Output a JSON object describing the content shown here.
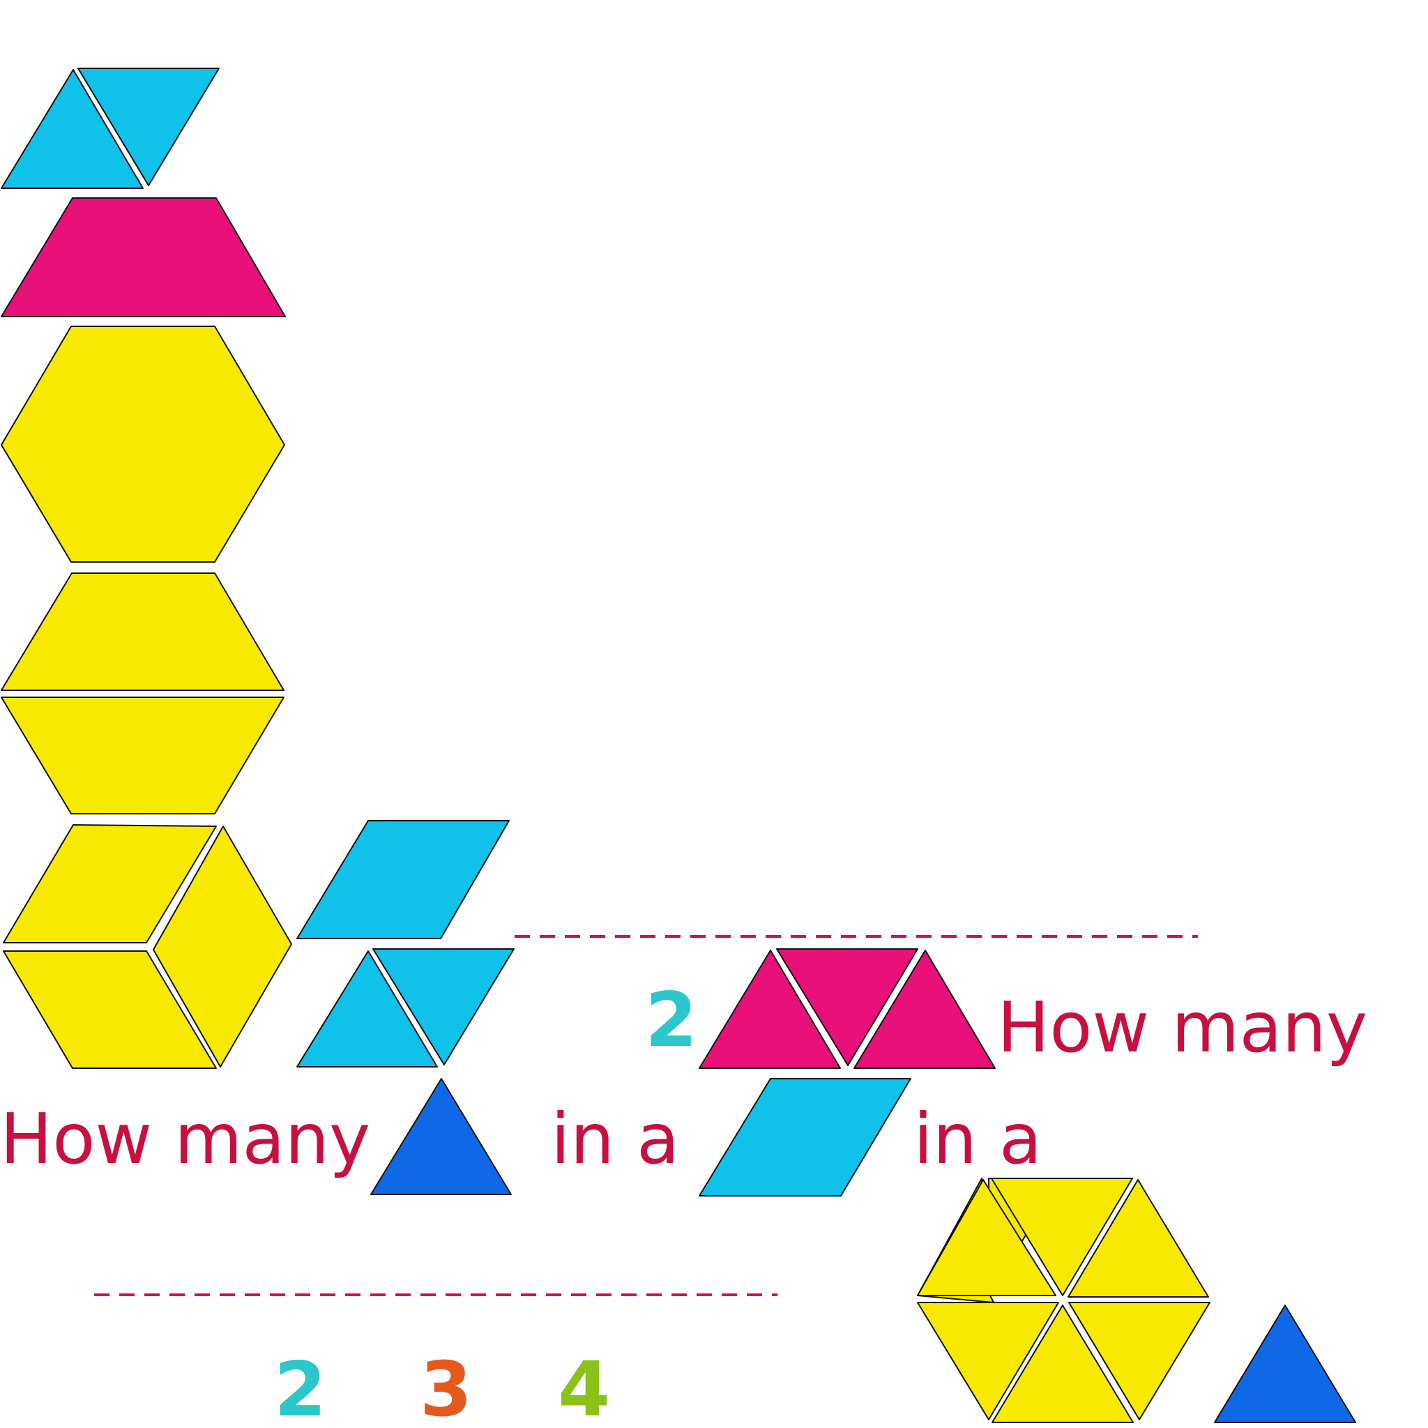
{
  "colors": {
    "yellow": "#f7ea00",
    "light_blue": "#10c1ea",
    "magenta": "#ea1079",
    "blue": "#0f69e6",
    "text_red": "#c8103f",
    "teal": "#2bc7cc",
    "orange": "#e45a1c",
    "green": "#8bc21a"
  },
  "question_1": {
    "prefix": "How many",
    "middle": "in a",
    "unit_shape": "blue-triangle",
    "whole_shape": "light-blue-rhombus"
  },
  "question_2": {
    "prefix": "How many",
    "middle": "in a",
    "unit_shape": "blue-triangle",
    "whole_shape": "yellow-hexagon"
  },
  "answer_choices": [
    {
      "value": "2",
      "color": "#2bc7cc"
    },
    {
      "value": "3",
      "color": "#e45a1c"
    },
    {
      "value": "4",
      "color": "#8bc21a"
    }
  ],
  "answer_sample": {
    "value": "2",
    "color": "#2bc7cc"
  }
}
